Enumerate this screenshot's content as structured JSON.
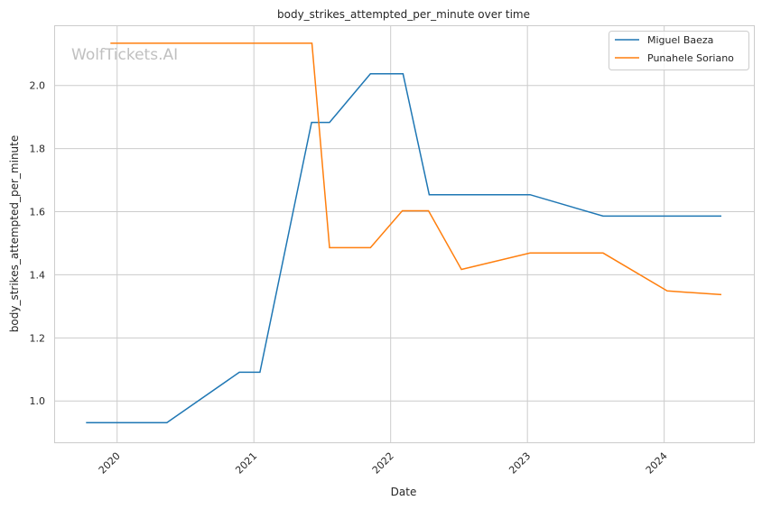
{
  "chart_data": {
    "type": "line",
    "title": "body_strikes_attempted_per_minute over time",
    "xlabel": "Date",
    "ylabel": "body_strikes_attempted_per_minute",
    "watermark": "WolfTickets.AI",
    "xlim": [
      "2019-07-17",
      "2024-08-28"
    ],
    "ylim": [
      0.869,
      2.191
    ],
    "x_ticks": [
      "2020",
      "2021",
      "2022",
      "2023",
      "2024"
    ],
    "y_ticks": [
      "1.0",
      "1.2",
      "1.4",
      "1.6",
      "1.8",
      "2.0"
    ],
    "grid": true,
    "legend_position": "top-right",
    "series": [
      {
        "name": "Miguel Baeza",
        "color": "#1f77b4",
        "x": [
          "2019-10-10",
          "2020-05-13",
          "2020-11-23",
          "2021-01-17",
          "2021-06-04",
          "2021-07-22",
          "2021-11-08",
          "2022-02-03",
          "2022-04-14",
          "2023-01-08",
          "2023-07-22",
          "2024-06-02"
        ],
        "y": [
          0.931,
          0.931,
          1.091,
          1.091,
          1.883,
          1.883,
          2.037,
          2.037,
          1.654,
          1.654,
          1.586,
          1.586
        ]
      },
      {
        "name": "Punahele Soriano",
        "color": "#ff7f0e",
        "x": [
          "2019-12-14",
          "2021-06-05",
          "2021-07-22",
          "2021-11-08",
          "2022-02-01",
          "2022-04-12",
          "2022-07-09",
          "2023-01-08",
          "2023-07-22",
          "2024-01-09",
          "2024-06-02"
        ],
        "y": [
          2.134,
          2.134,
          1.486,
          1.486,
          1.603,
          1.603,
          1.417,
          1.469,
          1.469,
          1.349,
          1.337
        ]
      }
    ]
  }
}
